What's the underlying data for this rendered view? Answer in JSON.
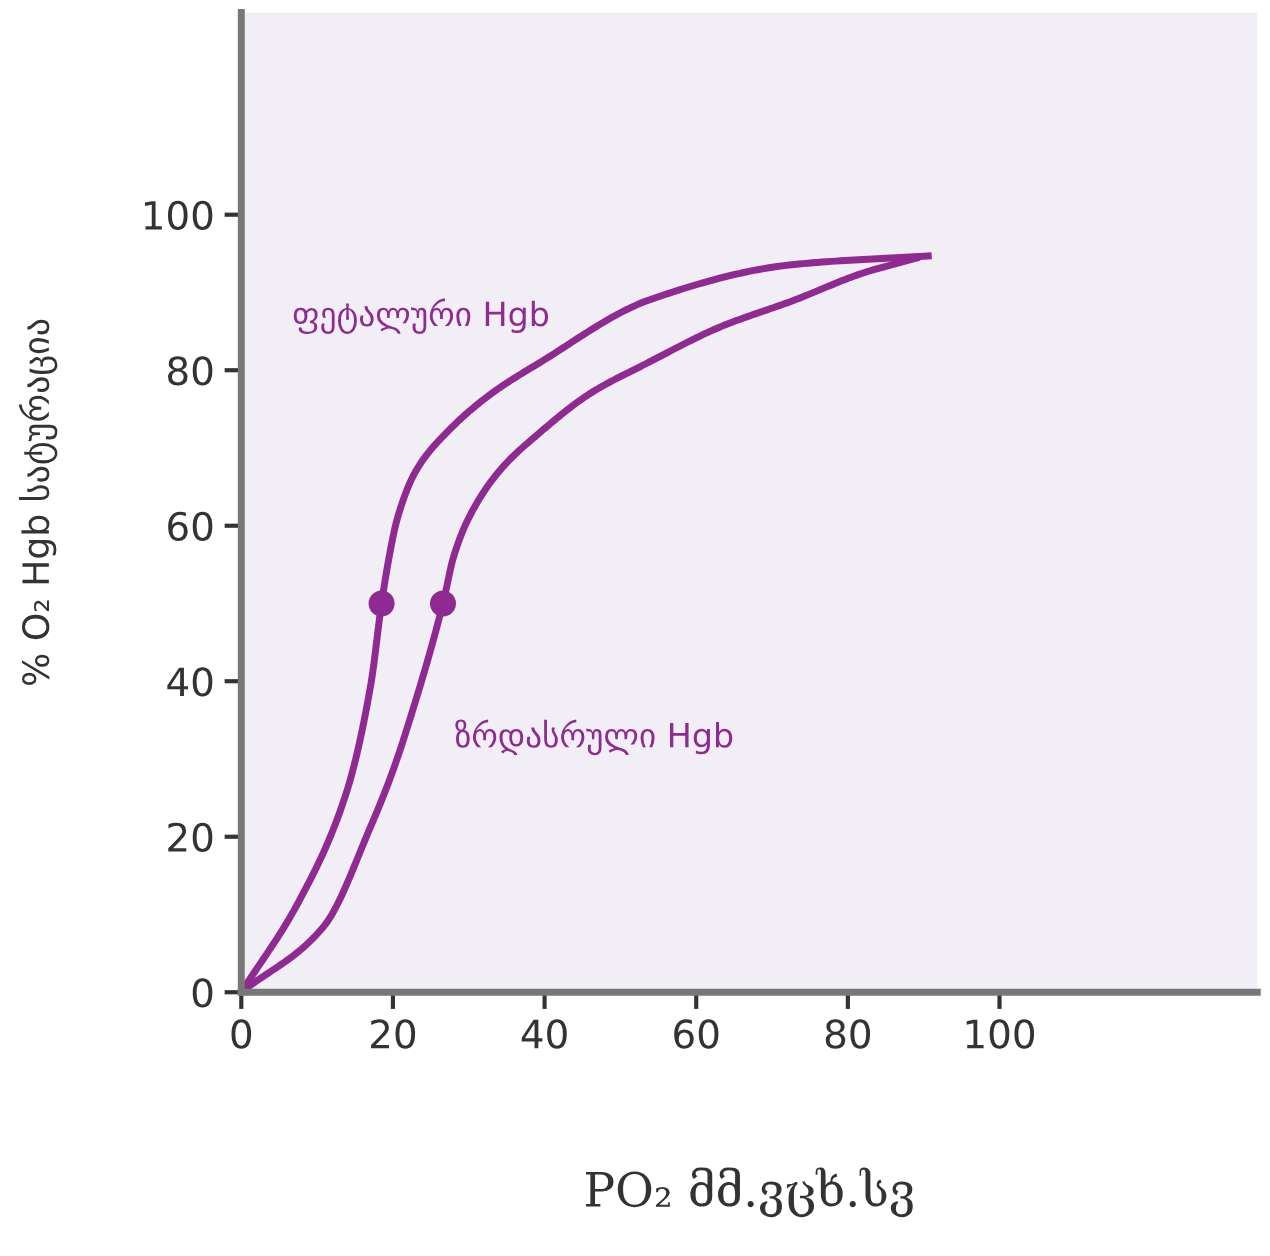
{
  "chart_data": {
    "type": "line",
    "xlabel": "PO₂ მმ.ვცხ.სვ",
    "ylabel": "% O₂ Hgb სატურაცია",
    "xlim": [
      0,
      134
    ],
    "ylim": [
      0,
      126
    ],
    "xticks": [
      0,
      20,
      40,
      60,
      80,
      100
    ],
    "yticks": [
      0,
      20,
      40,
      60,
      80,
      100
    ],
    "grid": false,
    "legend": false,
    "marker": "none",
    "line_style": "solid",
    "series": [
      {
        "name": "ფეტალური Hgb",
        "color": "#8e2a91",
        "x": [
          0,
          7.6,
          13.9,
          17.1,
          18.5,
          19.5,
          20.6,
          23,
          27.1,
          33,
          39.4,
          53.7,
          72.9,
          90.6
        ],
        "values": [
          0,
          11.7,
          25.8,
          39.7,
          50,
          56,
          61,
          67,
          72,
          77,
          81,
          89,
          93.6,
          94.7
        ]
      },
      {
        "name": "ზრდასრული Hgb",
        "color": "#8e2a91",
        "x": [
          0,
          10.9,
          17.1,
          20,
          22.3,
          26.6,
          28,
          30,
          34,
          39.4,
          46,
          53.7,
          63,
          72.9,
          82,
          89
        ],
        "values": [
          0,
          8.5,
          21.4,
          28.5,
          35.3,
          50,
          56,
          61,
          67,
          72,
          77,
          81,
          85.5,
          89,
          92.5,
          94.4
        ]
      },
      {
        "type": "scatter",
        "color": "#8e2a91",
        "marker": "circle",
        "x": [
          18.5,
          26.6
        ],
        "values": [
          50,
          50
        ]
      }
    ]
  }
}
